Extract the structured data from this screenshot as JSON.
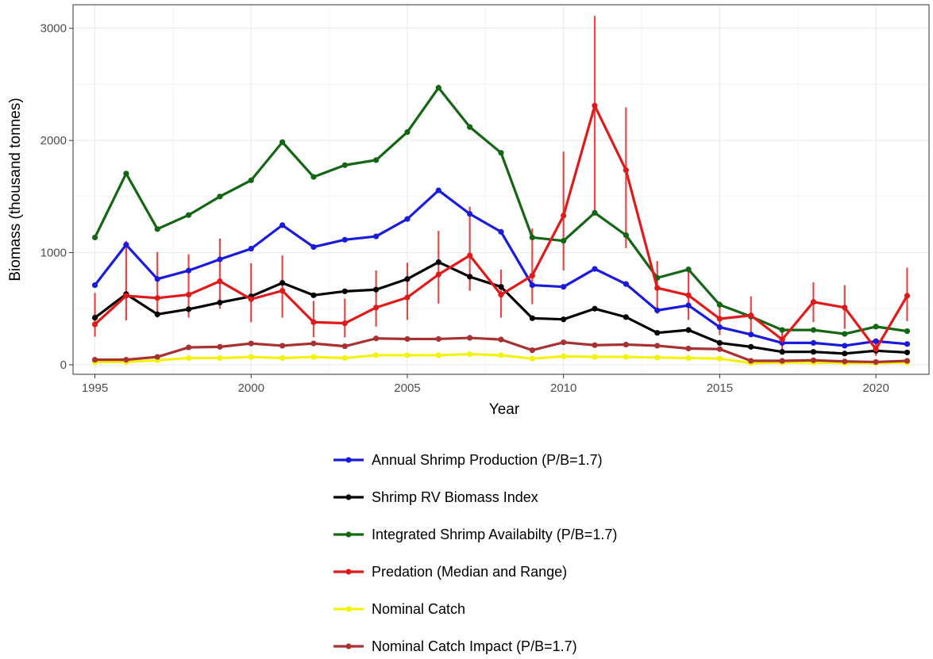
{
  "chart_data": {
    "type": "line",
    "xlabel": "Year",
    "ylabel": "Biomass (thousand tonnes)",
    "xlim": [
      1994.3,
      2021.7
    ],
    "ylim": [
      -85,
      3210
    ],
    "x_ticks": [
      1995,
      2000,
      2005,
      2010,
      2015,
      2020
    ],
    "y_ticks": [
      0,
      1000,
      2000,
      3000
    ],
    "grid": true,
    "legend_position": "bottom",
    "x": [
      1995,
      1996,
      1997,
      1998,
      1999,
      2000,
      2001,
      2002,
      2003,
      2004,
      2005,
      2006,
      2007,
      2008,
      2009,
      2010,
      2011,
      2012,
      2013,
      2014,
      2015,
      2016,
      2017,
      2018,
      2019,
      2020,
      2021
    ],
    "series": [
      {
        "name": "Annual Shrimp Production (P/B=1.7)",
        "color": "#1a1adb",
        "values": [
          710,
          1070,
          765,
          840,
          940,
          1035,
          1245,
          1050,
          1115,
          1145,
          1300,
          1555,
          1345,
          1185,
          710,
          695,
          855,
          720,
          485,
          530,
          335,
          270,
          195,
          195,
          170,
          210,
          185
        ]
      },
      {
        "name": "Shrimp RV Biomass Index",
        "color": "#000000",
        "values": [
          420,
          630,
          450,
          495,
          555,
          610,
          730,
          620,
          655,
          670,
          765,
          915,
          785,
          695,
          415,
          405,
          500,
          425,
          285,
          310,
          195,
          160,
          115,
          115,
          100,
          125,
          110
        ]
      },
      {
        "name": "Integrated Shrimp Availabilty (P/B=1.7)",
        "color": "#146614",
        "values": [
          1135,
          1705,
          1210,
          1335,
          1500,
          1645,
          1985,
          1675,
          1780,
          1825,
          2075,
          2470,
          2120,
          1890,
          1135,
          1105,
          1355,
          1155,
          775,
          850,
          535,
          430,
          310,
          310,
          275,
          340,
          300
        ]
      },
      {
        "name": "Predation (Median and Range)",
        "color": "#e0191b",
        "values": [
          360,
          615,
          595,
          625,
          745,
          585,
          660,
          380,
          370,
          510,
          600,
          805,
          975,
          625,
          795,
          1330,
          2310,
          1735,
          685,
          620,
          410,
          440,
          225,
          560,
          510,
          140,
          615
        ],
        "range_low": [
          250,
          395,
          420,
          420,
          500,
          380,
          420,
          245,
          245,
          340,
          400,
          545,
          660,
          420,
          540,
          840,
          1360,
          1040,
          455,
          400,
          265,
          275,
          135,
          380,
          320,
          80,
          390
        ],
        "range_high": [
          640,
          1105,
          1005,
          985,
          1125,
          905,
          975,
          570,
          590,
          840,
          910,
          1195,
          1410,
          850,
          1215,
          1900,
          3110,
          2295,
          925,
          855,
          565,
          610,
          325,
          735,
          710,
          215,
          865
        ]
      },
      {
        "name": "Nominal Catch",
        "color": "#f2f20a",
        "values": [
          25,
          25,
          40,
          60,
          60,
          70,
          60,
          70,
          60,
          85,
          85,
          85,
          95,
          85,
          55,
          75,
          70,
          70,
          65,
          60,
          55,
          15,
          20,
          20,
          15,
          15,
          20
        ]
      },
      {
        "name": "Nominal Catch Impact (P/B=1.7)",
        "color": "#a83232",
        "values": [
          45,
          45,
          70,
          155,
          160,
          190,
          170,
          190,
          165,
          235,
          230,
          230,
          240,
          225,
          130,
          200,
          175,
          180,
          170,
          145,
          140,
          35,
          35,
          40,
          30,
          25,
          35
        ]
      }
    ]
  }
}
